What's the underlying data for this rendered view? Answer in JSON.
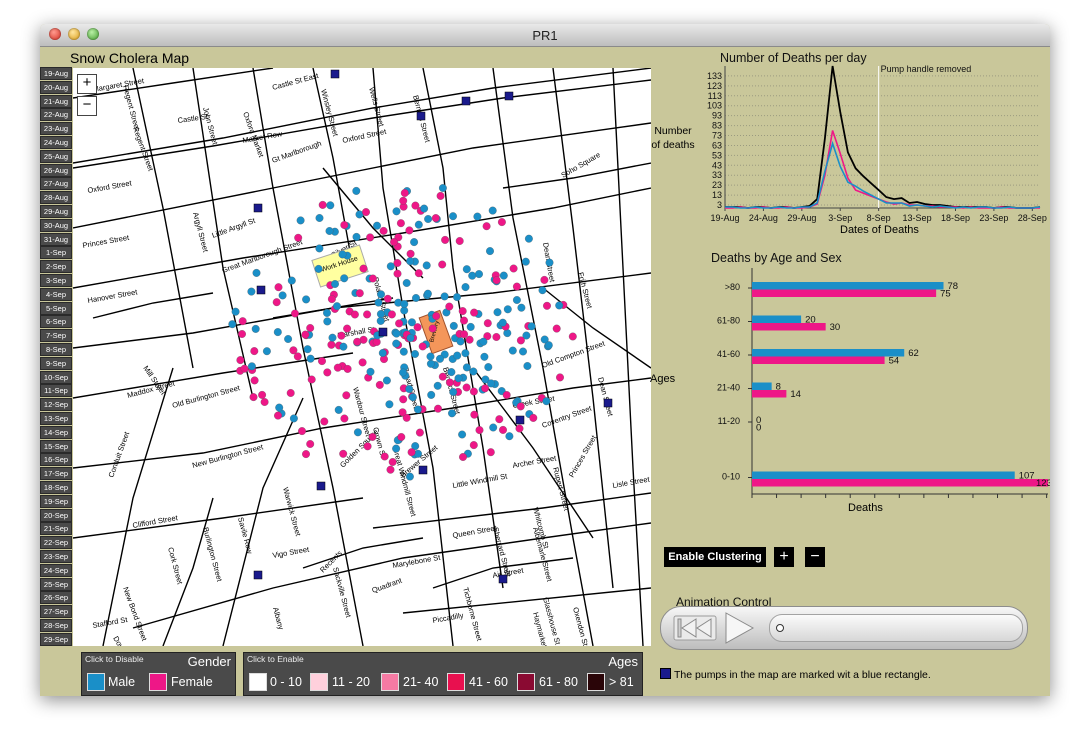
{
  "window": {
    "title": "PR1"
  },
  "map": {
    "title": "Snow Cholera Map",
    "zoom_in": "+",
    "zoom_out": "−",
    "dates": [
      "19-Aug",
      "20-Aug",
      "21-Aug",
      "22-Aug",
      "23-Aug",
      "24-Aug",
      "25-Aug",
      "26-Aug",
      "27-Aug",
      "28-Aug",
      "29-Aug",
      "30-Aug",
      "31-Aug",
      "1-Sep",
      "2-Sep",
      "3-Sep",
      "4-Sep",
      "5-Sep",
      "6-Sep",
      "7-Sep",
      "8-Sep",
      "9-Sep",
      "10-Sep",
      "11-Sep",
      "12-Sep",
      "13-Sep",
      "14-Sep",
      "15-Sep",
      "16-Sep",
      "17-Sep",
      "18-Sep",
      "19-Sep",
      "20-Sep",
      "21-Sep",
      "22-Sep",
      "23-Sep",
      "24-Sep",
      "25-Sep",
      "26-Sep",
      "27-Sep",
      "28-Sep",
      "29-Sep"
    ],
    "streets": [
      "Margaret Street",
      "Regent Street",
      "Castle St",
      "John Street",
      "Oxford Market",
      "Castle St East",
      "Winsley Street",
      "Wells Street",
      "Berners Street",
      "Oxford Street",
      "Market Row",
      "Gt Marlborough",
      "Oxford Street",
      "Soho Square",
      "Argyll Street",
      "Little Argyll St",
      "Princes Street",
      "Hanover Street",
      "Great Marlborough Street",
      "Poland Street",
      "Dean Street",
      "Frith Street",
      "Regent Street",
      "Maddox Street",
      "Mill Street",
      "New Burlington Street",
      "Old Burlington Street",
      "Conduit Street",
      "Clifford Street",
      "Burlington Street",
      "New Bond Street",
      "Cork Street",
      "Savile Row",
      "Vigo Street",
      "Sackville Street",
      "Albany",
      "Piccadilly",
      "Quadrant",
      "Recents",
      "Marylebone St",
      "Golden Square",
      "Warwick Street",
      "Brewer Street",
      "Queen Street",
      "Rupert Street",
      "Princes Street",
      "Coventry Street",
      "Old Compton Street",
      "Dean Street",
      "Greek Street",
      "Berwick Street",
      "Broad Street",
      "Marshall St",
      "Silver St",
      "Wardour Street",
      "Crown St",
      "Great Windmill Street",
      "Sherrard Street",
      "Little Windmill St",
      "Albemarle Street",
      "Dover Street",
      "Stafford St",
      "Glasshouse St",
      "Air Street",
      "Tichborne Street",
      "Haymarket",
      "Oxendon Street",
      "Whitcomb St",
      "Archer Street",
      "Lisle Street"
    ],
    "labels": {
      "workhouse": "Work House",
      "brewery": "Brewery"
    }
  },
  "gender_legend": {
    "hint": "Click to Disable",
    "title": "Gender",
    "items": [
      {
        "label": "Male",
        "color": "#1a8fc8"
      },
      {
        "label": "Female",
        "color": "#ee1787"
      }
    ]
  },
  "age_legend": {
    "hint": "Click to Enable",
    "title": "Ages",
    "items": [
      {
        "label": "0 - 10",
        "color": "#ffffff"
      },
      {
        "label": "11 - 20",
        "color": "#ffd0dc"
      },
      {
        "label": "21- 40",
        "color": "#f57aa3"
      },
      {
        "label": "41 - 60",
        "color": "#e8104f"
      },
      {
        "label": "61 - 80",
        "color": "#8a0a32"
      },
      {
        "label": "> 81",
        "color": "#2a0508"
      }
    ]
  },
  "line_chart": {
    "title": "Number of Deaths per day",
    "ylabel": "Number\nof deaths",
    "xlabel": "Dates of Deaths",
    "annotation": "Pump handle removed"
  },
  "bar_chart": {
    "title": "Deaths by Age and Sex",
    "ylabel": "Ages",
    "xlabel": "Deaths"
  },
  "chart_data": [
    {
      "type": "line",
      "title": "Number of Deaths per day",
      "ylabel": "Number of deaths",
      "xlabel": "Dates of Deaths",
      "x_tick_labels": [
        "19-Aug",
        "24-Aug",
        "29-Aug",
        "3-Sep",
        "8-Sep",
        "13-Sep",
        "18-Sep",
        "23-Sep",
        "28-Sep"
      ],
      "y_ticks": [
        3,
        13,
        23,
        33,
        43,
        53,
        63,
        73,
        83,
        93,
        103,
        113,
        123,
        133
      ],
      "ylim": [
        0,
        143
      ],
      "grid": "horizontal dotted",
      "annotation": {
        "text": "Pump handle removed",
        "x": "8-Sep"
      },
      "x": [
        "19-Aug",
        "20-Aug",
        "21-Aug",
        "22-Aug",
        "23-Aug",
        "24-Aug",
        "25-Aug",
        "26-Aug",
        "27-Aug",
        "28-Aug",
        "29-Aug",
        "30-Aug",
        "31-Aug",
        "1-Sep",
        "2-Sep",
        "3-Sep",
        "4-Sep",
        "5-Sep",
        "6-Sep",
        "7-Sep",
        "8-Sep",
        "9-Sep",
        "10-Sep",
        "11-Sep",
        "12-Sep",
        "13-Sep",
        "14-Sep",
        "15-Sep",
        "16-Sep",
        "17-Sep",
        "18-Sep",
        "19-Sep",
        "20-Sep",
        "21-Sep",
        "22-Sep",
        "23-Sep",
        "24-Sep",
        "25-Sep",
        "26-Sep",
        "27-Sep",
        "28-Sep",
        "29-Sep"
      ],
      "series": [
        {
          "color": "#000000",
          "values": [
            1,
            1,
            1,
            0,
            1,
            1,
            0,
            1,
            1,
            0,
            1,
            2,
            9,
            70,
            143,
            97,
            56,
            40,
            32,
            25,
            18,
            11,
            9,
            10,
            5,
            6,
            4,
            3,
            3,
            2,
            1,
            1,
            1,
            1,
            1,
            0,
            1,
            1,
            0,
            0,
            0,
            1
          ]
        },
        {
          "color": "#ee1787",
          "values": [
            0,
            0,
            1,
            0,
            0,
            1,
            0,
            0,
            1,
            0,
            0,
            1,
            4,
            33,
            78,
            55,
            30,
            18,
            15,
            12,
            9,
            6,
            4,
            5,
            3,
            3,
            2,
            2,
            1,
            1,
            1,
            0,
            1,
            0,
            0,
            0,
            1,
            0,
            0,
            0,
            0,
            0
          ]
        },
        {
          "color": "#1a8fc8",
          "values": [
            1,
            1,
            0,
            0,
            1,
            0,
            0,
            1,
            0,
            0,
            1,
            1,
            5,
            37,
            65,
            42,
            26,
            22,
            17,
            13,
            9,
            5,
            5,
            5,
            2,
            3,
            2,
            1,
            2,
            1,
            0,
            1,
            0,
            1,
            1,
            0,
            0,
            1,
            0,
            0,
            0,
            1
          ]
        }
      ]
    },
    {
      "type": "bar",
      "orientation": "horizontal",
      "title": "Deaths by Age and Sex",
      "ylabel": "Ages",
      "xlabel": "Deaths",
      "categories": [
        ">80",
        "61-80",
        "41-60",
        "21-40",
        "11-20",
        "0-10"
      ],
      "xlim": [
        0,
        125
      ],
      "x_ticks": [
        0,
        10,
        20,
        30,
        40,
        50,
        60,
        70,
        80,
        90,
        100,
        110,
        120
      ],
      "series": [
        {
          "name": "Male",
          "color": "#1a8fc8",
          "values": [
            78,
            20,
            62,
            8,
            0,
            107
          ]
        },
        {
          "name": "Female",
          "color": "#ee1787",
          "values": [
            75,
            30,
            54,
            14,
            0,
            123
          ]
        }
      ]
    }
  ],
  "controls": {
    "cluster_label": "Enable Clustering",
    "plus": "+",
    "minus": "−",
    "animation_label": "Animation Control",
    "slider_value": 0.0
  },
  "pump_note": "The pumps in the map are marked wit a blue rectangle.",
  "colors": {
    "male": "#1a8fc8",
    "female": "#ee1787",
    "pump": "#1a1a8c",
    "background": "#c9c79a"
  }
}
